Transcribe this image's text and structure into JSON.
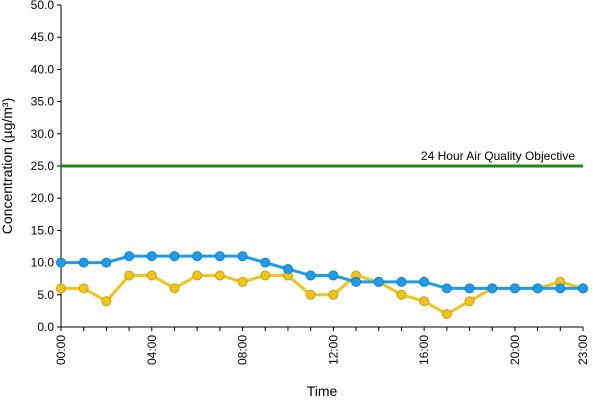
{
  "chart_data": {
    "type": "line",
    "xlabel": "Time",
    "ylabel": "Concentration (µg/m³)",
    "ylim": [
      0,
      50
    ],
    "yticks": [
      "0.0",
      "5.0",
      "10.0",
      "15.0",
      "20.0",
      "25.0",
      "30.0",
      "35.0",
      "40.0",
      "45.0",
      "50.0"
    ],
    "x": [
      0,
      1,
      2,
      3,
      4,
      5,
      6,
      7,
      8,
      9,
      10,
      11,
      12,
      13,
      14,
      15,
      16,
      17,
      18,
      19,
      20,
      21,
      22,
      23
    ],
    "xticks": [
      {
        "hour": 0,
        "label": "00:00"
      },
      {
        "hour": 4,
        "label": "04:00"
      },
      {
        "hour": 8,
        "label": "08:00"
      },
      {
        "hour": 12,
        "label": "12:00"
      },
      {
        "hour": 16,
        "label": "16:00"
      },
      {
        "hour": 20,
        "label": "20:00"
      },
      {
        "hour": 23,
        "label": "23:00"
      }
    ],
    "grid": false,
    "legend": "none",
    "series": [
      {
        "color": "#1e9be9",
        "values": [
          10,
          10,
          10,
          11,
          11,
          11,
          11,
          11,
          11,
          10,
          9,
          8,
          8,
          7,
          7,
          7,
          7,
          6,
          6,
          6,
          6,
          6,
          6,
          6
        ]
      },
      {
        "color": "#f0c419",
        "values": [
          6,
          6,
          4,
          8,
          8,
          6,
          8,
          8,
          7,
          8,
          8,
          5,
          5,
          8,
          7,
          5,
          4,
          2,
          4,
          6,
          6,
          6,
          7,
          6
        ]
      }
    ],
    "reference_line": {
      "value": 25,
      "label": "24 Hour Air Quality Objective",
      "color": "#1a8a1a"
    }
  }
}
